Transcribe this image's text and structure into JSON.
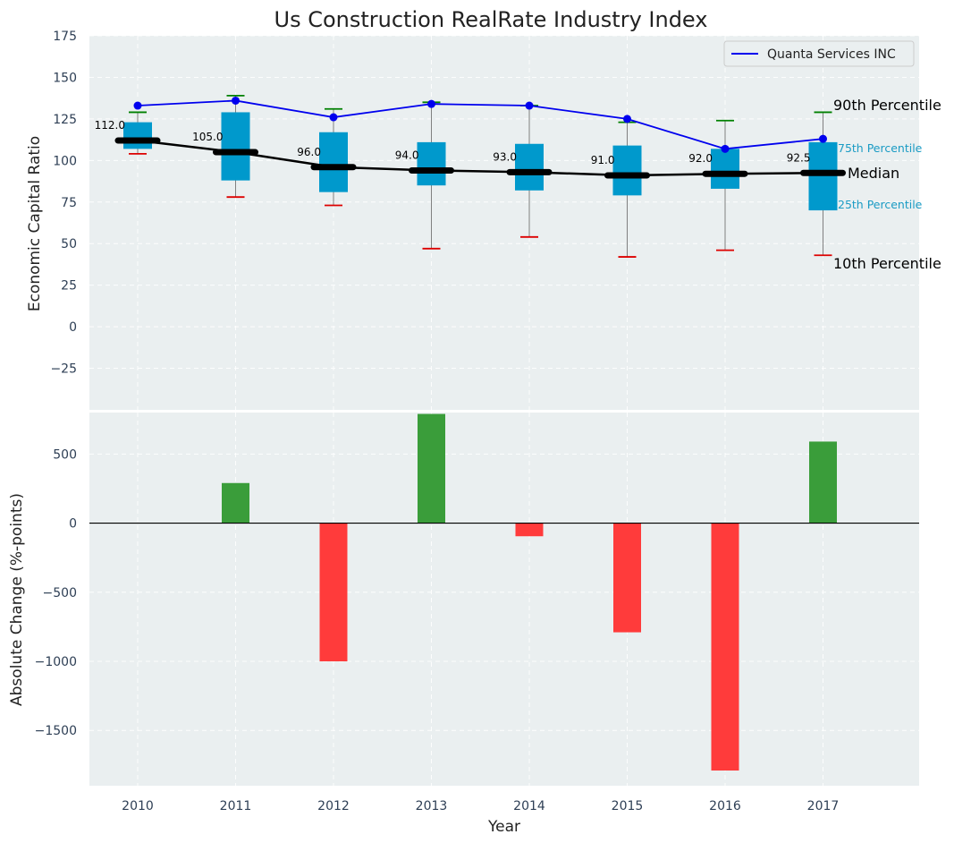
{
  "chart_data": [
    {
      "type": "box",
      "title": "Us Construction RealRate Industry Index",
      "ylabel": "Economic Capital Ratio",
      "ylim": [
        -50,
        175
      ],
      "yticks": [
        -25,
        0,
        25,
        50,
        75,
        100,
        125,
        150,
        175
      ],
      "ytick_labels": [
        "−25",
        "0",
        "25",
        "50",
        "75",
        "100",
        "125",
        "150",
        "175"
      ],
      "categories": [
        "2010",
        "2011",
        "2012",
        "2013",
        "2014",
        "2015",
        "2016",
        "2017"
      ],
      "p10": [
        104,
        78,
        73,
        47,
        54,
        42,
        46,
        43
      ],
      "q1": [
        107,
        88,
        81,
        85,
        82,
        79,
        83,
        70
      ],
      "median": [
        112,
        105,
        96,
        94,
        93,
        91,
        92,
        92.5
      ],
      "q3": [
        123,
        129,
        117,
        111,
        110,
        109,
        107,
        111
      ],
      "p90": [
        129,
        139,
        131,
        135,
        133,
        123,
        124,
        129
      ],
      "median_labels": [
        "112.0",
        "105.0",
        "96.0",
        "94.0",
        "93.0",
        "91.0",
        "92.0",
        "92.5"
      ],
      "series": [
        {
          "name": "Quanta Services INC",
          "values": [
            133,
            136,
            126,
            134,
            133,
            125,
            107,
            113
          ],
          "color": "#0000ee"
        }
      ],
      "annotations": {
        "p90": "90th Percentile",
        "q3": "75th Percentile",
        "median": "Median",
        "q1": "25th Percentile",
        "p10": "10th Percentile"
      },
      "colors": {
        "box": "#0099cc",
        "median_line": "#000000",
        "p90_cap": "#008000",
        "p10_cap": "#dd0000",
        "background": "#eaeff0"
      },
      "legend_position": "top-right"
    },
    {
      "type": "bar",
      "ylabel": "Absolute Change (%-points)",
      "xlabel": "Year",
      "ylim": [
        -1900,
        800
      ],
      "yticks": [
        -1500,
        -1000,
        -500,
        0,
        500
      ],
      "ytick_labels": [
        "−1500",
        "−1000",
        "−500",
        "0",
        "500"
      ],
      "categories": [
        "2010",
        "2011",
        "2012",
        "2013",
        "2014",
        "2015",
        "2016",
        "2017"
      ],
      "values": [
        0,
        290,
        -1000,
        790,
        -95,
        -790,
        -1790,
        590
      ],
      "colors": {
        "positive": "#3a9d3a",
        "negative": "#ff3b3b"
      }
    }
  ]
}
